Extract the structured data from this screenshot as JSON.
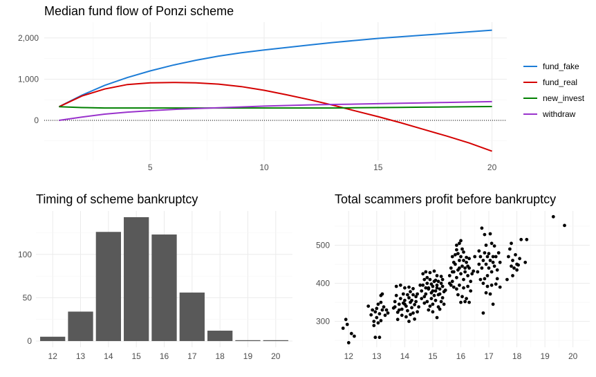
{
  "chart_data": [
    {
      "type": "line",
      "title": "Median fund flow of Ponzi scheme",
      "xlabel": "",
      "ylabel": "",
      "xlim": [
        0.35,
        20.65
      ],
      "ylim": [
        -975,
        2385
      ],
      "x_ticks": [
        5,
        10,
        15,
        20
      ],
      "y_ticks": [
        0,
        1000,
        2000
      ],
      "y_tick_labels": [
        "0",
        "1,000",
        "2,000"
      ],
      "reference_line": {
        "y": 0,
        "style": "dotted"
      },
      "legend_position": "right",
      "grid": true,
      "x": [
        1,
        2,
        3,
        4,
        5,
        6,
        7,
        8,
        9,
        10,
        11,
        12,
        13,
        14,
        15,
        16,
        17,
        18,
        19,
        20
      ],
      "series": [
        {
          "name": "fund_fake",
          "color": "#1c7cd6",
          "values": [
            330,
            610,
            850,
            1040,
            1200,
            1340,
            1460,
            1560,
            1640,
            1710,
            1770,
            1830,
            1890,
            1940,
            1990,
            2030,
            2070,
            2110,
            2150,
            2190
          ]
        },
        {
          "name": "fund_real",
          "color": "#d40000",
          "values": [
            330,
            590,
            760,
            870,
            910,
            920,
            910,
            880,
            820,
            730,
            620,
            500,
            370,
            230,
            90,
            -60,
            -220,
            -380,
            -550,
            -750
          ]
        },
        {
          "name": "new_invest",
          "color": "#008000",
          "values": [
            330,
            310,
            300,
            300,
            300,
            300,
            300,
            300,
            300,
            300,
            300,
            300,
            300,
            305,
            310,
            315,
            320,
            325,
            330,
            335
          ]
        },
        {
          "name": "withdraw",
          "color": "#9932cc",
          "values": [
            0,
            80,
            150,
            200,
            235,
            265,
            285,
            305,
            325,
            345,
            360,
            375,
            385,
            395,
            405,
            415,
            425,
            435,
            445,
            455
          ]
        }
      ]
    },
    {
      "type": "bar",
      "title": "Timing of scheme bankruptcy",
      "xlabel": "",
      "ylabel": "",
      "categories": [
        "12",
        "13",
        "14",
        "15",
        "16",
        "17",
        "18",
        "19",
        "20"
      ],
      "values": [
        5,
        34,
        126,
        143,
        123,
        56,
        12,
        1,
        1
      ],
      "ylim": [
        -7.15,
        150.15
      ],
      "y_ticks": [
        0,
        50,
        100
      ],
      "color": "#595959",
      "grid": true
    },
    {
      "type": "scatter",
      "title": "Total scammers profit before bankruptcy",
      "xlabel": "",
      "ylabel": "",
      "xlim": [
        11.5,
        20.6
      ],
      "ylim": [
        232,
        590
      ],
      "x_ticks": [
        12,
        13,
        14,
        15,
        16,
        17,
        18,
        19,
        20
      ],
      "y_ticks": [
        300,
        400,
        500
      ],
      "color": "#000000",
      "grid": true,
      "points": [
        [
          11.8,
          282
        ],
        [
          11.9,
          305
        ],
        [
          11.95,
          292
        ],
        [
          12.0,
          244
        ],
        [
          12.1,
          268
        ],
        [
          12.2,
          261
        ],
        [
          12.7,
          340
        ],
        [
          12.8,
          317
        ],
        [
          12.85,
          330
        ],
        [
          12.9,
          300
        ],
        [
          12.95,
          325
        ],
        [
          13.0,
          310
        ],
        [
          13.05,
          345
        ],
        [
          13.1,
          320
        ],
        [
          13.15,
          350
        ],
        [
          13.2,
          330
        ],
        [
          13.25,
          338
        ],
        [
          13.3,
          316
        ],
        [
          13.35,
          330
        ],
        [
          13.4,
          322
        ],
        [
          13.1,
          258
        ],
        [
          12.95,
          258
        ],
        [
          13.15,
          368
        ],
        [
          13.2,
          372
        ],
        [
          13.0,
          334
        ],
        [
          12.9,
          289
        ],
        [
          13.05,
          296
        ],
        [
          13.15,
          302
        ],
        [
          13.6,
          335
        ],
        [
          13.65,
          352
        ],
        [
          13.7,
          368
        ],
        [
          13.75,
          324
        ],
        [
          13.8,
          345
        ],
        [
          13.85,
          360
        ],
        [
          13.9,
          332
        ],
        [
          13.95,
          348
        ],
        [
          14.0,
          355
        ],
        [
          14.05,
          340
        ],
        [
          14.1,
          328
        ],
        [
          14.15,
          362
        ],
        [
          14.2,
          350
        ],
        [
          14.25,
          336
        ],
        [
          14.3,
          370
        ],
        [
          14.35,
          344
        ],
        [
          14.4,
          352
        ],
        [
          14.45,
          325
        ],
        [
          13.7,
          392
        ],
        [
          13.85,
          395
        ],
        [
          14.0,
          388
        ],
        [
          14.15,
          390
        ],
        [
          14.3,
          386
        ],
        [
          13.75,
          305
        ],
        [
          13.9,
          316
        ],
        [
          14.05,
          312
        ],
        [
          14.2,
          318
        ],
        [
          14.35,
          306
        ],
        [
          14.0,
          345
        ],
        [
          14.1,
          370
        ],
        [
          13.95,
          372
        ],
        [
          14.2,
          378
        ],
        [
          14.4,
          365
        ],
        [
          14.5,
          338
        ],
        [
          13.65,
          338
        ],
        [
          13.8,
          330
        ],
        [
          14.15,
          300
        ],
        [
          14.3,
          322
        ],
        [
          14.45,
          372
        ],
        [
          14.25,
          355
        ],
        [
          14.6,
          380
        ],
        [
          14.65,
          395
        ],
        [
          14.7,
          365
        ],
        [
          14.75,
          372
        ],
        [
          14.8,
          400
        ],
        [
          14.85,
          388
        ],
        [
          14.9,
          410
        ],
        [
          14.95,
          375
        ],
        [
          15.0,
          392
        ],
        [
          15.05,
          405
        ],
        [
          15.1,
          380
        ],
        [
          15.15,
          395
        ],
        [
          15.2,
          370
        ],
        [
          15.25,
          385
        ],
        [
          15.3,
          400
        ],
        [
          15.35,
          362
        ],
        [
          15.4,
          378
        ],
        [
          14.7,
          348
        ],
        [
          14.8,
          352
        ],
        [
          14.9,
          340
        ],
        [
          15.0,
          345
        ],
        [
          15.1,
          355
        ],
        [
          15.2,
          338
        ],
        [
          15.3,
          352
        ],
        [
          14.65,
          425
        ],
        [
          14.75,
          430
        ],
        [
          14.9,
          428
        ],
        [
          15.05,
          432
        ],
        [
          15.15,
          420
        ],
        [
          15.3,
          418
        ],
        [
          14.85,
          330
        ],
        [
          15.0,
          325
        ],
        [
          15.15,
          310
        ],
        [
          15.25,
          332
        ],
        [
          14.6,
          360
        ],
        [
          14.95,
          360
        ],
        [
          15.05,
          368
        ],
        [
          15.25,
          372
        ],
        [
          15.35,
          392
        ],
        [
          15.4,
          345
        ],
        [
          15.45,
          382
        ],
        [
          14.55,
          395
        ],
        [
          14.7,
          410
        ],
        [
          14.8,
          415
        ],
        [
          14.95,
          398
        ],
        [
          15.1,
          408
        ],
        [
          15.2,
          405
        ],
        [
          15.35,
          410
        ],
        [
          15.0,
          380
        ],
        [
          14.85,
          385
        ],
        [
          15.15,
          388
        ],
        [
          14.75,
          388
        ],
        [
          15.6,
          420
        ],
        [
          15.65,
          440
        ],
        [
          15.7,
          405
        ],
        [
          15.75,
          430
        ],
        [
          15.8,
          450
        ],
        [
          15.85,
          415
        ],
        [
          15.9,
          435
        ],
        [
          15.95,
          460
        ],
        [
          16.0,
          425
        ],
        [
          16.05,
          445
        ],
        [
          16.1,
          410
        ],
        [
          16.15,
          430
        ],
        [
          16.2,
          455
        ],
        [
          16.25,
          420
        ],
        [
          16.3,
          440
        ],
        [
          16.35,
          405
        ],
        [
          16.4,
          425
        ],
        [
          15.7,
          470
        ],
        [
          15.8,
          475
        ],
        [
          15.9,
          478
        ],
        [
          16.0,
          470
        ],
        [
          16.1,
          482
        ],
        [
          16.2,
          468
        ],
        [
          15.85,
          488
        ],
        [
          16.05,
          490
        ],
        [
          15.75,
          390
        ],
        [
          15.85,
          385
        ],
        [
          15.95,
          395
        ],
        [
          16.1,
          388
        ],
        [
          16.25,
          392
        ],
        [
          16.35,
          380
        ],
        [
          15.9,
          370
        ],
        [
          16.05,
          365
        ],
        [
          16.2,
          360
        ],
        [
          15.6,
          400
        ],
        [
          15.65,
          395
        ],
        [
          16.0,
          350
        ],
        [
          16.15,
          352
        ],
        [
          16.3,
          350
        ],
        [
          15.75,
          455
        ],
        [
          15.95,
          440
        ],
        [
          16.1,
          460
        ],
        [
          16.3,
          465
        ],
        [
          16.45,
          432
        ],
        [
          16.5,
          470
        ],
        [
          15.85,
          500
        ],
        [
          16.0,
          512
        ],
        [
          15.95,
          505
        ],
        [
          16.15,
          440
        ],
        [
          16.25,
          445
        ],
        [
          15.7,
          430
        ],
        [
          16.6,
          430
        ],
        [
          16.65,
          450
        ],
        [
          16.7,
          470
        ],
        [
          16.75,
          440
        ],
        [
          16.8,
          460
        ],
        [
          16.85,
          480
        ],
        [
          16.9,
          450
        ],
        [
          16.95,
          470
        ],
        [
          17.0,
          440
        ],
        [
          17.05,
          460
        ],
        [
          17.1,
          430
        ],
        [
          17.15,
          455
        ],
        [
          17.2,
          445
        ],
        [
          17.25,
          470
        ],
        [
          17.3,
          435
        ],
        [
          16.75,
          545
        ],
        [
          16.85,
          528
        ],
        [
          17.05,
          530
        ],
        [
          16.9,
          500
        ],
        [
          17.1,
          505
        ],
        [
          17.2,
          498
        ],
        [
          17.35,
          480
        ],
        [
          16.8,
          400
        ],
        [
          16.95,
          392
        ],
        [
          17.1,
          395
        ],
        [
          17.25,
          398
        ],
        [
          17.4,
          390
        ],
        [
          16.9,
          375
        ],
        [
          17.05,
          372
        ],
        [
          16.7,
          410
        ],
        [
          16.85,
          412
        ],
        [
          16.8,
          322
        ],
        [
          17.15,
          345
        ],
        [
          17.3,
          412
        ],
        [
          17.4,
          455
        ],
        [
          17.0,
          478
        ],
        [
          16.65,
          485
        ],
        [
          17.15,
          470
        ],
        [
          16.95,
          420
        ],
        [
          17.7,
          470
        ],
        [
          17.75,
          490
        ],
        [
          17.8,
          445
        ],
        [
          17.85,
          460
        ],
        [
          17.9,
          440
        ],
        [
          17.95,
          475
        ],
        [
          18.0,
          450
        ],
        [
          18.1,
          465
        ],
        [
          18.15,
          515
        ],
        [
          18.3,
          455
        ],
        [
          18.35,
          515
        ],
        [
          17.65,
          410
        ],
        [
          17.85,
          420
        ],
        [
          18.0,
          435
        ],
        [
          18.05,
          448
        ],
        [
          17.8,
          505
        ],
        [
          19.3,
          575
        ],
        [
          19.7,
          552
        ]
      ]
    }
  ]
}
